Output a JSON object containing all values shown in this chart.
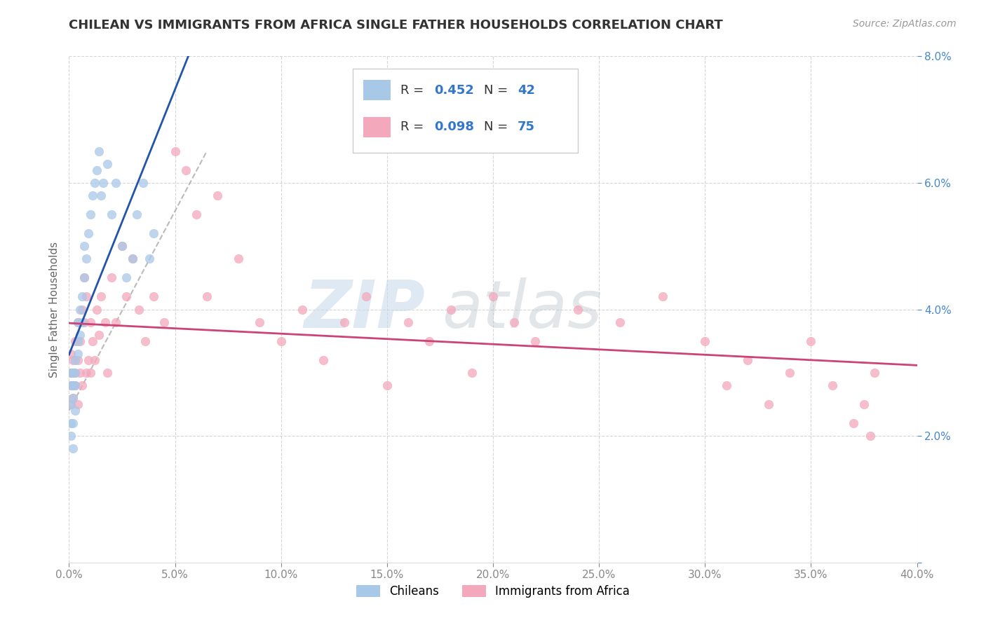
{
  "title": "CHILEAN VS IMMIGRANTS FROM AFRICA SINGLE FATHER HOUSEHOLDS CORRELATION CHART",
  "source": "Source: ZipAtlas.com",
  "xlabel_chileans": "Chileans",
  "xlabel_africa": "Immigrants from Africa",
  "ylabel": "Single Father Households",
  "xlim": [
    0.0,
    0.4
  ],
  "ylim": [
    0.0,
    0.08
  ],
  "R_chilean": 0.452,
  "N_chilean": 42,
  "R_africa": 0.098,
  "N_africa": 75,
  "color_chilean": "#a8c8e8",
  "color_africa": "#f4a8bc",
  "trendline_color_chilean": "#2255aa",
  "trendline_color_africa": "#cc4477",
  "trendline_dashed_color": "#aaaaaa",
  "chilean_x": [
    0.001,
    0.001,
    0.001,
    0.001,
    0.001,
    0.002,
    0.002,
    0.002,
    0.002,
    0.002,
    0.003,
    0.003,
    0.003,
    0.003,
    0.004,
    0.004,
    0.004,
    0.005,
    0.005,
    0.006,
    0.006,
    0.007,
    0.007,
    0.008,
    0.009,
    0.01,
    0.011,
    0.012,
    0.013,
    0.014,
    0.015,
    0.016,
    0.018,
    0.02,
    0.022,
    0.025,
    0.027,
    0.03,
    0.032,
    0.035,
    0.038,
    0.04
  ],
  "chilean_y": [
    0.025,
    0.028,
    0.03,
    0.02,
    0.022,
    0.028,
    0.026,
    0.03,
    0.022,
    0.018,
    0.03,
    0.032,
    0.028,
    0.024,
    0.035,
    0.038,
    0.033,
    0.04,
    0.036,
    0.042,
    0.038,
    0.045,
    0.05,
    0.048,
    0.052,
    0.055,
    0.058,
    0.06,
    0.062,
    0.065,
    0.058,
    0.06,
    0.063,
    0.055,
    0.06,
    0.05,
    0.045,
    0.048,
    0.055,
    0.06,
    0.048,
    0.052
  ],
  "africa_x": [
    0.001,
    0.001,
    0.001,
    0.001,
    0.002,
    0.002,
    0.002,
    0.002,
    0.003,
    0.003,
    0.003,
    0.004,
    0.004,
    0.004,
    0.005,
    0.005,
    0.006,
    0.006,
    0.007,
    0.007,
    0.008,
    0.008,
    0.009,
    0.01,
    0.01,
    0.011,
    0.012,
    0.013,
    0.014,
    0.015,
    0.017,
    0.018,
    0.02,
    0.022,
    0.025,
    0.027,
    0.03,
    0.033,
    0.036,
    0.04,
    0.045,
    0.05,
    0.055,
    0.06,
    0.065,
    0.07,
    0.08,
    0.09,
    0.1,
    0.11,
    0.12,
    0.13,
    0.14,
    0.15,
    0.16,
    0.17,
    0.18,
    0.19,
    0.2,
    0.21,
    0.22,
    0.24,
    0.26,
    0.28,
    0.3,
    0.31,
    0.32,
    0.33,
    0.34,
    0.35,
    0.36,
    0.37,
    0.375,
    0.378,
    0.38
  ],
  "africa_y": [
    0.03,
    0.028,
    0.025,
    0.033,
    0.032,
    0.028,
    0.026,
    0.03,
    0.035,
    0.028,
    0.03,
    0.038,
    0.025,
    0.032,
    0.03,
    0.035,
    0.04,
    0.028,
    0.045,
    0.038,
    0.03,
    0.042,
    0.032,
    0.038,
    0.03,
    0.035,
    0.032,
    0.04,
    0.036,
    0.042,
    0.038,
    0.03,
    0.045,
    0.038,
    0.05,
    0.042,
    0.048,
    0.04,
    0.035,
    0.042,
    0.038,
    0.065,
    0.062,
    0.055,
    0.042,
    0.058,
    0.048,
    0.038,
    0.035,
    0.04,
    0.032,
    0.038,
    0.042,
    0.028,
    0.038,
    0.035,
    0.04,
    0.03,
    0.042,
    0.038,
    0.035,
    0.04,
    0.038,
    0.042,
    0.035,
    0.028,
    0.032,
    0.025,
    0.03,
    0.035,
    0.028,
    0.022,
    0.025,
    0.02,
    0.03
  ]
}
